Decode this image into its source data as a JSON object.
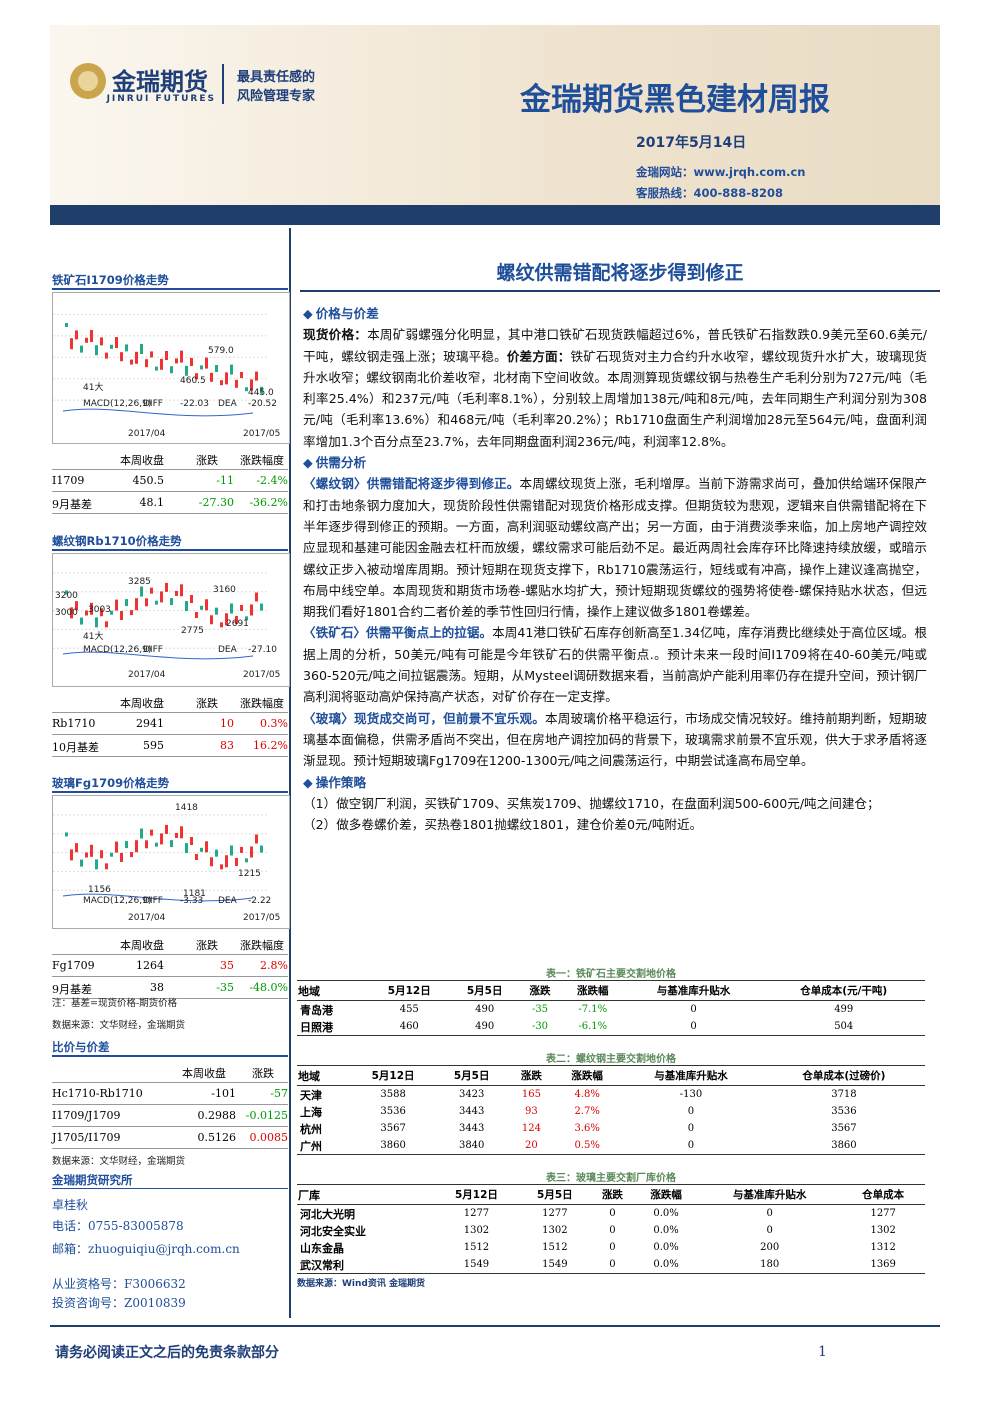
{
  "header": {
    "logo_name": "金瑞期货",
    "logo_sub": "JINRUI FUTURES",
    "slogan": [
      "最具责任感的",
      "风险管理专家"
    ],
    "title": "金瑞期货黑色建材周报",
    "date": "2017年5月14日",
    "website": "金瑞网站：www.jrqh.com.cn",
    "hotline": "客服热线：400-888-8208"
  },
  "sidebar": {
    "charts": [
      {
        "title": "铁矿石I1709价格走势",
        "labels": [
          "579.0",
          "460.5",
          "445.0",
          "41大",
          "MACD(12,26,9)",
          "DIFF",
          "-22.03",
          "DEA",
          "-20.52",
          "2017/04",
          "2017/05"
        ],
        "header": [
          "本周收盘",
          "涨跌",
          "涨跌幅度"
        ],
        "rows": [
          [
            "I1709",
            "450.5",
            "-11",
            "-2.4%"
          ],
          [
            "9月基差",
            "48.1",
            "-27.30",
            "-36.2%"
          ]
        ]
      },
      {
        "title": "螺纹钢Rb1710价格走势",
        "labels": [
          "3285",
          "3160",
          "3003",
          "2775",
          "2691",
          "3200",
          "3000",
          "41大",
          "MACD(12,26,9)",
          "DIFF",
          "DEA",
          "-27.10",
          "2017/04",
          "2017/05"
        ],
        "header": [
          "本周收盘",
          "涨跌",
          "涨跌幅度"
        ],
        "rows": [
          [
            "Rb1710",
            "2941",
            "10",
            "0.3%"
          ],
          [
            "10月基差",
            "595",
            "83",
            "16.2%"
          ]
        ]
      },
      {
        "title": "玻璃Fg1709价格走势",
        "labels": [
          "1418",
          "1156",
          "1215",
          "1181",
          "MACD(12,26,9)",
          "DIFF",
          "-3.33",
          "DEA",
          "-2.22",
          "2017/04",
          "2017/05"
        ],
        "header": [
          "本周收盘",
          "涨跌",
          "涨跌幅度"
        ],
        "rows": [
          [
            "Fg1709",
            "1264",
            "35",
            "2.8%"
          ],
          [
            "9月基差",
            "38",
            "-35",
            "-48.0%"
          ]
        ]
      }
    ],
    "note": "注：基差=现货价格-期货价格",
    "source": "数据来源：文华财经，金瑞期货",
    "ratio": {
      "title": "比价与价差",
      "header": [
        "本周收盘",
        "涨跌"
      ],
      "rows": [
        [
          "Hc1710-Rb1710",
          "-101",
          "-57"
        ],
        [
          "I1709/J1709",
          "0.2988",
          "-0.0125"
        ],
        [
          "J1705/I1709",
          "0.5126",
          "0.0085"
        ]
      ],
      "source": "数据来源：文华财经，金瑞期货"
    },
    "contact": {
      "org": "金瑞期货研究所",
      "name": "卓桂秋",
      "phone": "电话：0755-83005878",
      "email": "邮箱：zhuoguiqiu@jrqh.com.cn",
      "qual": "从业资格号：F3006632",
      "invest": "投资咨询号：Z0010839"
    }
  },
  "main": {
    "title": "螺纹供需错配将逐步得到修正",
    "sections": [
      {
        "heading": "价格与价差",
        "paragraphs": [
          [
            {
              "strong": "现货价格："
            },
            {
              "text": "本周矿弱螺强分化明显，其中港口铁矿石现货跌幅超过6%，普氏铁矿石指数跌0.9美元至60.6美元/干吨，螺纹钢走强上涨；玻璃平稳。"
            },
            {
              "strong": "价差方面："
            },
            {
              "text": "铁矿石现货对主力合约升水收窄，螺纹现货升水扩大，玻璃现货升水收窄；螺纹钢南北价差收窄，北材南下空间收敛。本周测算现货螺纹钢与热卷生产毛利分别为727元/吨（毛利率25.4%）和237元/吨（毛利率8.1%），分别较上周增加138元/吨和8元/吨，去年同期生产利润分别为308元/吨（毛利率13.6%）和468元/吨（毛利率20.2%）；Rb1710盘面生产利润增加28元至564元/吨，盘面利润率增加1.3个百分点至23.7%，去年同期盘面利润236元/吨，利润率12.8%。"
            }
          ]
        ]
      },
      {
        "heading": "供需分析",
        "paragraphs": [
          [
            {
              "strong": "〈螺纹钢〉供需错配将逐步得到修正。"
            },
            {
              "text": "本周螺纹现货上涨，毛利增厚。当前下游需求尚可，叠加供给端环保限产和打击地条钢力度加大，现货阶段性供需错配对现货价格形成支撑。但期货较为悲观，逻辑来自供需错配将在下半年逐步得到修正的预期。一方面，高利润驱动螺纹高产出；另一方面，由于消费淡季来临，加上房地产调控效应显现和基建可能因金融去杠杆而放缓，螺纹需求可能后劲不足。最近两周社会库存环比降速持续放缓，或暗示螺纹正步入被动增库周期。预计短期在现货支撑下，Rb1710震荡运行，短线或有冲高，操作上建议逢高抛空，布局中线空单。本周现货和期货市场卷-螺贴水均扩大，预计短期现货螺纹的强势将使卷-螺保持贴水状态，但远期我们看好1801合约二者价差的季节性回归行情，操作上建议做多1801卷螺差。"
            }
          ],
          [
            {
              "strong": "〈铁矿石〉供需平衡点上的拉锯。"
            },
            {
              "text": "本周41港口铁矿石库存创新高至1.34亿吨，库存消费比继续处于高位区域。根据上周的分析，50美元/吨有可能是今年铁矿石的供需平衡点.。预计未来一段时间I1709将在40-60美元/吨或360-520元/吨之间拉锯震荡。短期，从Mysteel调研数据来看，当前高炉产能利用率仍存在提升空间，预计钢厂高利润将驱动高炉保持高产状态，对矿价存在一定支撑。"
            }
          ],
          [
            {
              "strong": "〈玻璃〉现货成交尚可，但前景不宜乐观。"
            },
            {
              "text": "本周玻璃价格平稳运行，市场成交情况较好。维持前期判断，短期玻璃基本面偏稳，供需矛盾尚不突出，但在房地产调控加码的背景下，玻璃需求前景不宜乐观，供大于求矛盾将逐渐显现。预计短期玻璃Fg1709在1200-1300元/吨之间震荡运行，中期尝试逢高布局空单。"
            }
          ]
        ]
      },
      {
        "heading": "操作策略",
        "paragraphs": [
          [
            {
              "text": "（1）做空钢厂利润，买铁矿1709、买焦炭1709、抛螺纹1710，在盘面利润500-600元/吨之间建仓；"
            }
          ],
          [
            {
              "text": "（2）做多卷螺价差，买热卷1801抛螺纹1801，建仓价差0元/吨附近。"
            }
          ]
        ]
      }
    ],
    "tables": [
      {
        "caption": "表一：铁矿石主要交割地价格",
        "header": [
          "地域",
          "5月12日",
          "5月5日",
          "涨跌",
          "涨跌幅",
          "与基准库升贴水",
          "仓单成本(元/干吨)"
        ],
        "rows": [
          [
            "青岛港",
            "455",
            "490",
            "-35",
            "-7.1%",
            "0",
            "499"
          ],
          [
            "日照港",
            "460",
            "490",
            "-30",
            "-6.1%",
            "0",
            "504"
          ]
        ]
      },
      {
        "caption": "表二：螺纹钢主要交割地价格",
        "header": [
          "地域",
          "5月12日",
          "5月5日",
          "涨跌",
          "涨跌幅",
          "与基准库升贴水",
          "仓单成本(过磅价)"
        ],
        "rows": [
          [
            "天津",
            "3588",
            "3423",
            "165",
            "4.8%",
            "-130",
            "3718"
          ],
          [
            "上海",
            "3536",
            "3443",
            "93",
            "2.7%",
            "0",
            "3536"
          ],
          [
            "杭州",
            "3567",
            "3443",
            "124",
            "3.6%",
            "0",
            "3567"
          ],
          [
            "广州",
            "3860",
            "3840",
            "20",
            "0.5%",
            "0",
            "3860"
          ]
        ]
      },
      {
        "caption": "表三：玻璃主要交割厂库价格",
        "header": [
          "厂库",
          "5月12日",
          "5月5日",
          "涨跌",
          "涨跌幅",
          "与基准库升贴水",
          "仓单成本"
        ],
        "rows": [
          [
            "河北大光明",
            "1277",
            "1277",
            "0",
            "0.0%",
            "0",
            "1277"
          ],
          [
            "河北安全实业",
            "1302",
            "1302",
            "0",
            "0.0%",
            "0",
            "1302"
          ],
          [
            "山东金晶",
            "1512",
            "1512",
            "0",
            "0.0%",
            "200",
            "1312"
          ],
          [
            "武汉常利",
            "1549",
            "1549",
            "0",
            "0.0%",
            "180",
            "1369"
          ]
        ]
      }
    ],
    "source": "数据来源：Wind资讯  金瑞期货"
  },
  "footer": {
    "disclaimer": "请务必阅读正文之后的免责条款部分",
    "page": "1"
  }
}
